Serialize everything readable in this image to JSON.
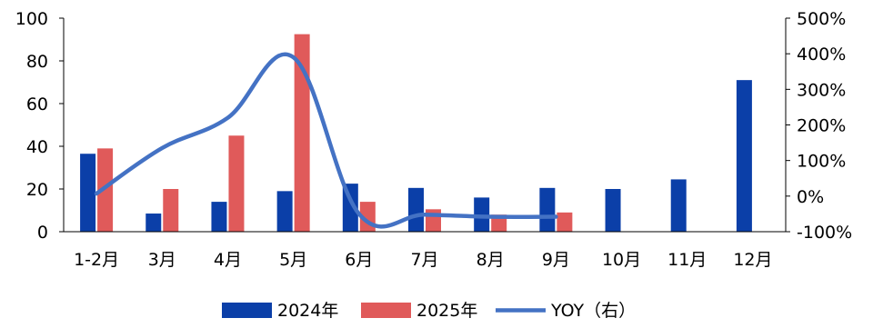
{
  "chart_data": {
    "type": "bar",
    "categories": [
      "1-2月",
      "3月",
      "4月",
      "5月",
      "6月",
      "7月",
      "8月",
      "9月",
      "10月",
      "11月",
      "12月"
    ],
    "series": [
      {
        "name": "2024年",
        "type": "bar",
        "axis": "left",
        "color": "#0B3FA8",
        "values": [
          36.5,
          8.5,
          14,
          19,
          22.5,
          20.5,
          16,
          20.5,
          20,
          24.5,
          71
        ]
      },
      {
        "name": "2025年",
        "type": "bar",
        "axis": "left",
        "color": "#E05A5A",
        "values": [
          39,
          20,
          45,
          92.5,
          14,
          10.5,
          8,
          9,
          null,
          null,
          null
        ]
      },
      {
        "name": "YOY（右）",
        "type": "line",
        "axis": "right",
        "color": "#4472C4",
        "values": [
          7,
          135,
          220,
          390,
          -50,
          -52,
          -58,
          -58,
          null,
          null,
          null
        ]
      }
    ],
    "y_left": {
      "min": 0,
      "max": 100,
      "ticks": [
        "0",
        "20",
        "40",
        "60",
        "80",
        "100"
      ]
    },
    "y_right": {
      "min": -100,
      "max": 500,
      "ticks": [
        "-100%",
        "0%",
        "100%",
        "200%",
        "300%",
        "400%",
        "500%"
      ]
    },
    "grid": false,
    "legend_position": "bottom"
  }
}
